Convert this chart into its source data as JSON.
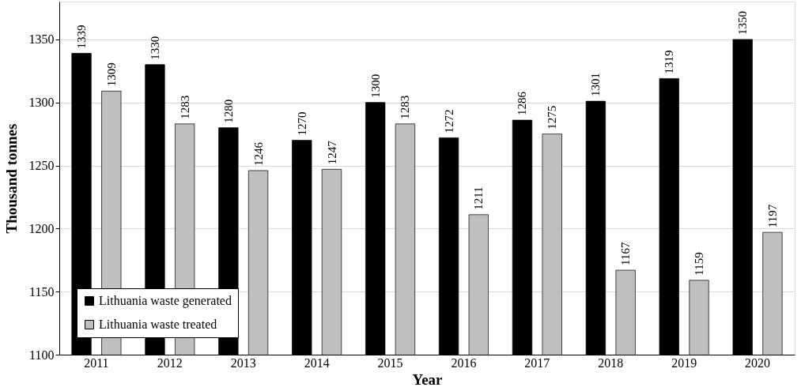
{
  "chart_data": {
    "type": "bar",
    "xlabel": "Year",
    "ylabel": "Thousand tonnes",
    "categories": [
      "2011",
      "2012",
      "2013",
      "2014",
      "2015",
      "2016",
      "2017",
      "2018",
      "2019",
      "2020"
    ],
    "series": [
      {
        "name": "Lithuania waste generated",
        "color": "#000000",
        "values": [
          1339,
          1330,
          1280,
          1270,
          1300,
          1272,
          1286,
          1301,
          1319,
          1350
        ]
      },
      {
        "name": "Lithuania waste treated",
        "color": "#bfbfbf",
        "values": [
          1309,
          1283,
          1246,
          1247,
          1283,
          1211,
          1275,
          1167,
          1159,
          1197
        ]
      }
    ],
    "ylim": [
      1100,
      1380
    ],
    "yticks": [
      1100,
      1150,
      1200,
      1250,
      1300,
      1350
    ],
    "grid": "y",
    "legend": "bottom left",
    "data_labels": true
  }
}
